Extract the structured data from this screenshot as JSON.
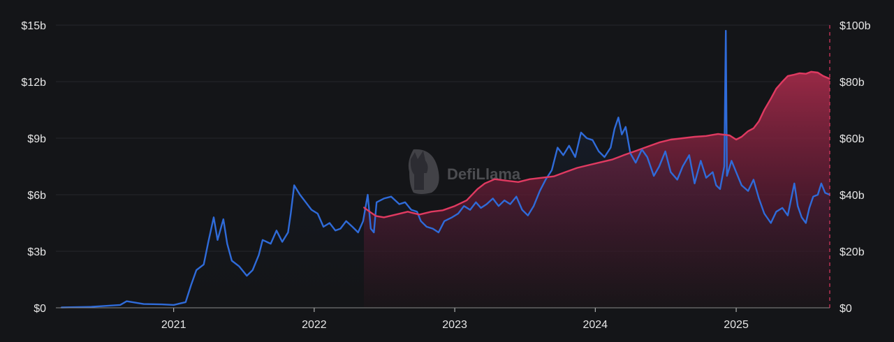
{
  "watermark": {
    "text": "DefiLlama",
    "icon": "llama-logo-icon"
  },
  "colors": {
    "background": "#141518",
    "grid": "#26282d",
    "volume_line": "#2f6bd9",
    "tvl_line": "#e03a61",
    "axis_text": "#e6e6e6"
  },
  "chart_data": {
    "type": "line",
    "title": "",
    "grid": true,
    "x_axis": {
      "ticks": [
        "2021",
        "2022",
        "2023",
        "2024",
        "2025"
      ],
      "range": [
        "2020-03",
        "2025-09"
      ]
    },
    "y_axis_left": {
      "ticks": [
        "$0",
        "$3b",
        "$6b",
        "$9b",
        "$12b",
        "$15b"
      ],
      "range": [
        0,
        15
      ],
      "unit": "$b"
    },
    "y_axis_right": {
      "ticks": [
        "$0",
        "$20b",
        "$40b",
        "$60b",
        "$80b",
        "$100b"
      ],
      "range": [
        0,
        100
      ],
      "unit": "$b"
    },
    "series": [
      {
        "axis": "left",
        "style": "line with faint area",
        "points": [
          [
            "2020-03-15",
            0.02
          ],
          [
            "2020-06-01",
            0.05
          ],
          [
            "2020-08-15",
            0.15
          ],
          [
            "2020-09-01",
            0.35
          ],
          [
            "2020-10-15",
            0.2
          ],
          [
            "2020-12-01",
            0.18
          ],
          [
            "2021-01-01",
            0.15
          ],
          [
            "2021-02-01",
            0.3
          ],
          [
            "2021-02-15",
            1.2
          ],
          [
            "2021-03-01",
            2.0
          ],
          [
            "2021-03-20",
            2.3
          ],
          [
            "2021-04-01",
            3.5
          ],
          [
            "2021-04-15",
            4.8
          ],
          [
            "2021-04-25",
            3.6
          ],
          [
            "2021-05-10",
            4.7
          ],
          [
            "2021-05-20",
            3.4
          ],
          [
            "2021-06-01",
            2.5
          ],
          [
            "2021-06-20",
            2.2
          ],
          [
            "2021-07-10",
            1.7
          ],
          [
            "2021-07-25",
            2.0
          ],
          [
            "2021-08-10",
            2.8
          ],
          [
            "2021-08-20",
            3.6
          ],
          [
            "2021-09-10",
            3.4
          ],
          [
            "2021-09-25",
            4.1
          ],
          [
            "2021-10-10",
            3.5
          ],
          [
            "2021-10-25",
            4.0
          ],
          [
            "2021-11-01",
            5.0
          ],
          [
            "2021-11-10",
            6.5
          ],
          [
            "2021-11-25",
            6.0
          ],
          [
            "2021-12-10",
            5.6
          ],
          [
            "2021-12-25",
            5.2
          ],
          [
            "2022-01-10",
            5.0
          ],
          [
            "2022-01-25",
            4.3
          ],
          [
            "2022-02-10",
            4.5
          ],
          [
            "2022-02-25",
            4.1
          ],
          [
            "2022-03-10",
            4.2
          ],
          [
            "2022-03-25",
            4.6
          ],
          [
            "2022-04-10",
            4.3
          ],
          [
            "2022-04-25",
            4.0
          ],
          [
            "2022-05-08",
            4.6
          ],
          [
            "2022-05-20",
            6.0
          ],
          [
            "2022-05-28",
            4.2
          ],
          [
            "2022-06-05",
            4.0
          ],
          [
            "2022-06-12",
            5.6
          ],
          [
            "2022-07-01",
            5.8
          ],
          [
            "2022-07-20",
            5.9
          ],
          [
            "2022-08-10",
            5.5
          ],
          [
            "2022-08-25",
            5.6
          ],
          [
            "2022-09-10",
            5.2
          ],
          [
            "2022-09-25",
            5.1
          ],
          [
            "2022-10-05",
            4.6
          ],
          [
            "2022-10-20",
            4.3
          ],
          [
            "2022-11-05",
            4.2
          ],
          [
            "2022-11-20",
            4.0
          ],
          [
            "2022-12-05",
            4.6
          ],
          [
            "2022-12-25",
            4.8
          ],
          [
            "2023-01-10",
            5.0
          ],
          [
            "2023-01-25",
            5.4
          ],
          [
            "2023-02-10",
            5.2
          ],
          [
            "2023-02-25",
            5.6
          ],
          [
            "2023-03-10",
            5.3
          ],
          [
            "2023-03-25",
            5.5
          ],
          [
            "2023-04-10",
            5.8
          ],
          [
            "2023-04-25",
            5.4
          ],
          [
            "2023-05-10",
            5.7
          ],
          [
            "2023-05-25",
            5.5
          ],
          [
            "2023-06-10",
            5.9
          ],
          [
            "2023-06-25",
            5.2
          ],
          [
            "2023-07-10",
            4.9
          ],
          [
            "2023-07-25",
            5.4
          ],
          [
            "2023-08-10",
            6.2
          ],
          [
            "2023-08-25",
            6.8
          ],
          [
            "2023-09-10",
            7.3
          ],
          [
            "2023-09-25",
            8.5
          ],
          [
            "2023-10-10",
            8.1
          ],
          [
            "2023-10-25",
            8.6
          ],
          [
            "2023-11-10",
            8.0
          ],
          [
            "2023-11-25",
            9.3
          ],
          [
            "2023-12-10",
            9.0
          ],
          [
            "2023-12-25",
            8.9
          ],
          [
            "2024-01-10",
            8.3
          ],
          [
            "2024-01-25",
            8.0
          ],
          [
            "2024-02-10",
            8.5
          ],
          [
            "2024-02-20",
            9.5
          ],
          [
            "2024-03-01",
            10.1
          ],
          [
            "2024-03-10",
            9.2
          ],
          [
            "2024-03-20",
            9.6
          ],
          [
            "2024-04-01",
            8.2
          ],
          [
            "2024-04-15",
            7.7
          ],
          [
            "2024-05-01",
            8.4
          ],
          [
            "2024-05-15",
            8.0
          ],
          [
            "2024-06-01",
            7.0
          ],
          [
            "2024-06-15",
            7.5
          ],
          [
            "2024-07-01",
            8.3
          ],
          [
            "2024-07-15",
            7.2
          ],
          [
            "2024-08-01",
            6.8
          ],
          [
            "2024-08-15",
            7.5
          ],
          [
            "2024-09-01",
            8.1
          ],
          [
            "2024-09-15",
            6.6
          ],
          [
            "2024-10-01",
            7.8
          ],
          [
            "2024-10-15",
            6.9
          ],
          [
            "2024-11-01",
            7.2
          ],
          [
            "2024-11-10",
            6.5
          ],
          [
            "2024-11-20",
            6.3
          ],
          [
            "2024-12-01",
            7.5
          ],
          [
            "2024-12-05",
            14.7
          ],
          [
            "2024-12-08",
            7.0
          ],
          [
            "2024-12-20",
            7.8
          ],
          [
            "2025-01-01",
            7.2
          ],
          [
            "2025-01-15",
            6.5
          ],
          [
            "2025-02-01",
            6.2
          ],
          [
            "2025-02-15",
            6.8
          ],
          [
            "2025-03-01",
            5.8
          ],
          [
            "2025-03-15",
            5.0
          ],
          [
            "2025-04-01",
            4.5
          ],
          [
            "2025-04-15",
            5.1
          ],
          [
            "2025-05-01",
            5.3
          ],
          [
            "2025-05-15",
            4.9
          ],
          [
            "2025-06-01",
            6.6
          ],
          [
            "2025-06-10",
            5.4
          ],
          [
            "2025-06-20",
            4.8
          ],
          [
            "2025-07-01",
            4.5
          ],
          [
            "2025-07-10",
            5.3
          ],
          [
            "2025-07-20",
            5.9
          ],
          [
            "2025-08-01",
            6.0
          ],
          [
            "2025-08-10",
            6.6
          ],
          [
            "2025-08-20",
            6.1
          ],
          [
            "2025-09-01",
            6.0
          ]
        ]
      },
      {
        "axis": "right",
        "style": "line with area",
        "points": [
          [
            "2022-05-10",
            35.5
          ],
          [
            "2022-05-25",
            34.0
          ],
          [
            "2022-06-10",
            32.5
          ],
          [
            "2022-07-01",
            32.0
          ],
          [
            "2022-08-01",
            33.0
          ],
          [
            "2022-09-01",
            34.0
          ],
          [
            "2022-10-01",
            33.0
          ],
          [
            "2022-11-01",
            34.0
          ],
          [
            "2022-12-01",
            34.5
          ],
          [
            "2023-01-01",
            36.0
          ],
          [
            "2023-02-01",
            38.0
          ],
          [
            "2023-03-01",
            42.0
          ],
          [
            "2023-03-20",
            44.0
          ],
          [
            "2023-04-15",
            45.5
          ],
          [
            "2023-05-15",
            45.0
          ],
          [
            "2023-06-15",
            44.5
          ],
          [
            "2023-07-15",
            45.5
          ],
          [
            "2023-08-15",
            46.0
          ],
          [
            "2023-09-15",
            46.5
          ],
          [
            "2023-10-15",
            48.0
          ],
          [
            "2023-11-15",
            49.5
          ],
          [
            "2023-12-15",
            50.5
          ],
          [
            "2024-01-15",
            51.5
          ],
          [
            "2024-02-15",
            52.5
          ],
          [
            "2024-03-15",
            54.0
          ],
          [
            "2024-04-15",
            55.5
          ],
          [
            "2024-05-15",
            57.0
          ],
          [
            "2024-06-15",
            58.5
          ],
          [
            "2024-07-15",
            59.5
          ],
          [
            "2024-08-15",
            60.0
          ],
          [
            "2024-09-15",
            60.5
          ],
          [
            "2024-10-15",
            60.8
          ],
          [
            "2024-11-15",
            61.5
          ],
          [
            "2024-12-15",
            61.0
          ],
          [
            "2025-01-01",
            59.5
          ],
          [
            "2025-01-15",
            60.5
          ],
          [
            "2025-02-01",
            62.5
          ],
          [
            "2025-02-15",
            63.5
          ],
          [
            "2025-03-01",
            66.0
          ],
          [
            "2025-03-15",
            70.0
          ],
          [
            "2025-04-01",
            74.0
          ],
          [
            "2025-04-15",
            77.5
          ],
          [
            "2025-05-01",
            80.0
          ],
          [
            "2025-05-15",
            82.0
          ],
          [
            "2025-06-01",
            82.5
          ],
          [
            "2025-06-15",
            83.0
          ],
          [
            "2025-07-01",
            82.8
          ],
          [
            "2025-07-15",
            83.5
          ],
          [
            "2025-08-01",
            83.2
          ],
          [
            "2025-08-15",
            82.0
          ],
          [
            "2025-09-01",
            81.0
          ]
        ]
      }
    ]
  }
}
